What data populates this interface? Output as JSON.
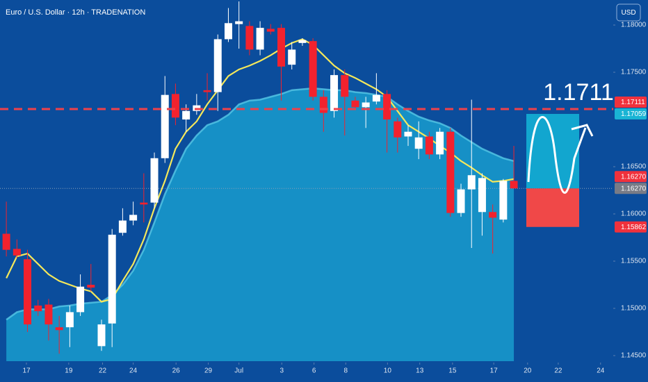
{
  "chart_data": {
    "type": "candlestick",
    "title": "Euro / U.S. Dollar · 12h · TRADENATION",
    "currency_button": "USD",
    "open": [
      1.1579,
      1.1563,
      1.1552,
      1.1503,
      1.1504,
      1.148,
      1.148,
      1.1496,
      1.1525,
      1.146,
      1.1484,
      1.158,
      1.1593,
      1.1612,
      1.1612,
      1.1659,
      1.1727,
      1.17,
      1.1709,
      1.1731,
      1.1729,
      1.1785,
      1.1801,
      1.1799,
      1.1774,
      1.1796,
      1.1797,
      1.1758,
      1.1781,
      1.1783,
      1.1724,
      1.1709,
      1.1747,
      1.172,
      1.1713,
      1.1719,
      1.1727,
      1.1698,
      1.1682,
      1.1669,
      1.1682,
      1.1663,
      1.1687,
      1.1601,
      1.1626,
      1.1602,
      1.1602,
      1.1594,
      1.1635
    ],
    "high": [
      1.1613,
      1.1573,
      1.1562,
      1.1509,
      1.151,
      1.1492,
      1.1503,
      1.1536,
      1.1547,
      1.1488,
      1.1584,
      1.1606,
      1.1613,
      1.1643,
      1.1665,
      1.1746,
      1.1738,
      1.1716,
      1.1727,
      1.1749,
      1.179,
      1.1818,
      1.1825,
      1.1804,
      1.1804,
      1.1801,
      1.1801,
      1.1782,
      1.1786,
      1.1786,
      1.1731,
      1.1753,
      1.1753,
      1.1724,
      1.1724,
      1.1749,
      1.1731,
      1.1702,
      1.1694,
      1.1698,
      1.1687,
      1.1691,
      1.1691,
      1.1632,
      1.1721,
      1.1643,
      1.161,
      1.1637,
      1.1672
    ],
    "low": [
      1.1555,
      1.1553,
      1.1475,
      1.1492,
      1.1466,
      1.1452,
      1.1459,
      1.1492,
      1.1518,
      1.1455,
      1.1459,
      1.1577,
      1.1588,
      1.1591,
      1.1606,
      1.1654,
      1.1694,
      1.1687,
      1.1705,
      1.172,
      1.1709,
      1.1782,
      1.1775,
      1.1768,
      1.1768,
      1.179,
      1.172,
      1.1753,
      1.1778,
      1.172,
      1.1687,
      1.1702,
      1.1683,
      1.1711,
      1.1691,
      1.1716,
      1.1665,
      1.1665,
      1.1672,
      1.1658,
      1.1658,
      1.1658,
      1.1597,
      1.1597,
      1.1564,
      1.1577,
      1.1558,
      1.1591,
      1.1627
    ],
    "close": [
      1.1562,
      1.1556,
      1.1483,
      1.1497,
      1.1483,
      1.1477,
      1.1496,
      1.1523,
      1.1522,
      1.1483,
      1.1578,
      1.1593,
      1.1599,
      1.161,
      1.1659,
      1.1726,
      1.1702,
      1.1709,
      1.1715,
      1.1729,
      1.1785,
      1.1802,
      1.1804,
      1.1774,
      1.1797,
      1.1793,
      1.1756,
      1.1774,
      1.1784,
      1.1724,
      1.1707,
      1.1747,
      1.1724,
      1.1713,
      1.1718,
      1.1726,
      1.17,
      1.1681,
      1.1687,
      1.1681,
      1.1663,
      1.1687,
      1.1601,
      1.1626,
      1.1641,
      1.1638,
      1.1596,
      1.1635,
      1.1627
    ],
    "up_color": "#ffffff",
    "down_color": "#f2222e",
    "indicators": [
      {
        "type": "area",
        "color": "#1690c6",
        "edge_color": "#56c8e6",
        "values": [
          1.1488,
          1.1496,
          1.1499,
          1.1499,
          1.1499,
          1.1502,
          1.1503,
          1.1505,
          1.1506,
          1.1507,
          1.1514,
          1.1525,
          1.154,
          1.1562,
          1.1591,
          1.1621,
          1.1646,
          1.1669,
          1.1683,
          1.1694,
          1.1698,
          1.1705,
          1.1716,
          1.172,
          1.1721,
          1.1724,
          1.1727,
          1.1731,
          1.1732,
          1.1733,
          1.1732,
          1.1731,
          1.1731,
          1.1729,
          1.1728,
          1.1726,
          1.1724,
          1.1716,
          1.1709,
          1.1703,
          1.1699,
          1.1696,
          1.1691,
          1.1683,
          1.1676,
          1.1669,
          1.1664,
          1.1659,
          1.1656
        ]
      },
      {
        "type": "line",
        "color": "#f5e85a",
        "values": [
          1.1532,
          1.1555,
          1.1558,
          1.1547,
          1.1536,
          1.1529,
          1.1525,
          1.1521,
          1.1518,
          1.1507,
          1.151,
          1.1529,
          1.1547,
          1.1573,
          1.1606,
          1.1635,
          1.1669,
          1.1687,
          1.1698,
          1.1716,
          1.1731,
          1.1746,
          1.1753,
          1.1757,
          1.1762,
          1.1768,
          1.1775,
          1.1781,
          1.1785,
          1.1779,
          1.1768,
          1.1757,
          1.1749,
          1.1744,
          1.1738,
          1.1732,
          1.1724,
          1.1709,
          1.1694,
          1.1687,
          1.168,
          1.1672,
          1.1665,
          1.1656,
          1.1649,
          1.1641,
          1.1634,
          1.1635,
          1.1637
        ]
      }
    ],
    "target_level": 1.1711,
    "target_color": "#f0414a",
    "price_tags": [
      {
        "value": 1.17111,
        "label": "1.17111",
        "color": "#f0313c"
      },
      {
        "value": 1.17059,
        "label": "1.17059",
        "color": "#1ab4d4"
      },
      {
        "value": 1.1627,
        "label": "1.16270",
        "color": "#f0313c"
      },
      {
        "value": 1.1627,
        "label": "1.16270",
        "color": "#787b86"
      },
      {
        "value": 1.15862,
        "label": "1.15862",
        "color": "#f0313c"
      }
    ],
    "xlim": [
      -0.6,
      57.4
    ],
    "xticks": [
      {
        "value": 1.9,
        "label": "17"
      },
      {
        "value": 5.9,
        "label": "19"
      },
      {
        "value": 9.1,
        "label": "22"
      },
      {
        "value": 12,
        "label": "24"
      },
      {
        "value": 16.05,
        "label": "26"
      },
      {
        "value": 19.1,
        "label": "29"
      },
      {
        "value": 22,
        "label": "Jul"
      },
      {
        "value": 26.05,
        "label": "3"
      },
      {
        "value": 29.1,
        "label": "6"
      },
      {
        "value": 32.1,
        "label": "8"
      },
      {
        "value": 36.05,
        "label": "10"
      },
      {
        "value": 39.1,
        "label": "13"
      },
      {
        "value": 42.2,
        "label": "15"
      },
      {
        "value": 46.1,
        "label": "17"
      },
      {
        "value": 49.3,
        "label": "20"
      },
      {
        "value": 52.2,
        "label": "22"
      },
      {
        "value": 56.2,
        "label": "24"
      }
    ],
    "ylim": [
      1.14441,
      1.18265
    ],
    "yticks": [
      {
        "value": 1.145,
        "label": "1.14500"
      },
      {
        "value": 1.15,
        "label": "1.15000"
      },
      {
        "value": 1.155,
        "label": "1.15500"
      },
      {
        "value": 1.16,
        "label": "1.16000"
      },
      {
        "value": 1.165,
        "label": "1.16500"
      },
      {
        "value": 1.175,
        "label": "1.17500"
      },
      {
        "value": 1.18,
        "label": "1.18000"
      }
    ]
  }
}
